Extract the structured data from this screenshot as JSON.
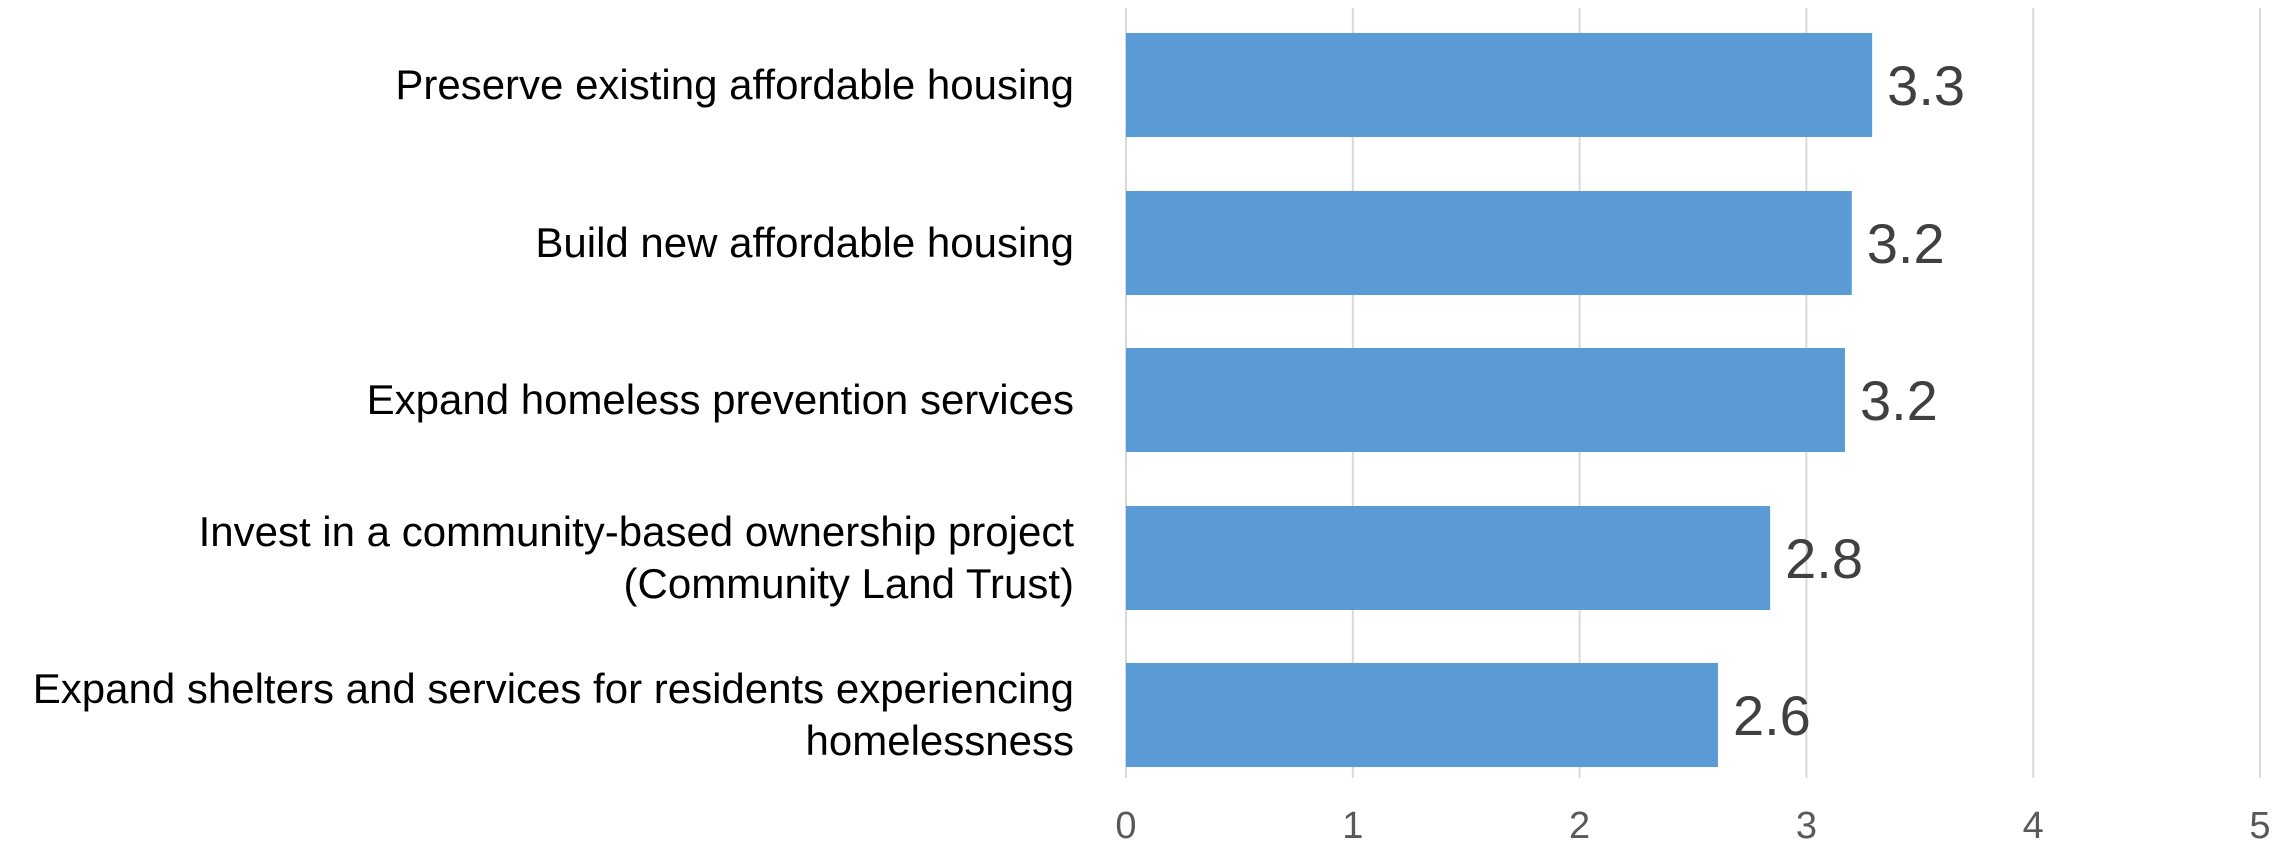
{
  "chart_data": {
    "type": "bar",
    "orientation": "horizontal",
    "categories": [
      [
        "Preserve existing affordable housing"
      ],
      [
        "Build new affordable housing"
      ],
      [
        "Expand homeless prevention services"
      ],
      [
        "Invest in a community-based ownership project",
        "(Community Land Trust)"
      ],
      [
        "Expand shelters and services for residents experiencing",
        "homelessness"
      ]
    ],
    "values": [
      3.3,
      3.2,
      3.2,
      2.8,
      2.6
    ],
    "data_labels": [
      "3.3",
      "3.2",
      "3.2",
      "2.8",
      "2.6"
    ],
    "plotted_values": [
      3.29,
      3.2,
      3.17,
      2.84,
      2.61
    ],
    "xlim": [
      0,
      5
    ],
    "xticks": [
      "0",
      "1",
      "2",
      "3",
      "4",
      "5"
    ],
    "grid": "vertical",
    "bar_color": "#5b9bd5",
    "title": "",
    "xlabel": "",
    "ylabel": ""
  }
}
